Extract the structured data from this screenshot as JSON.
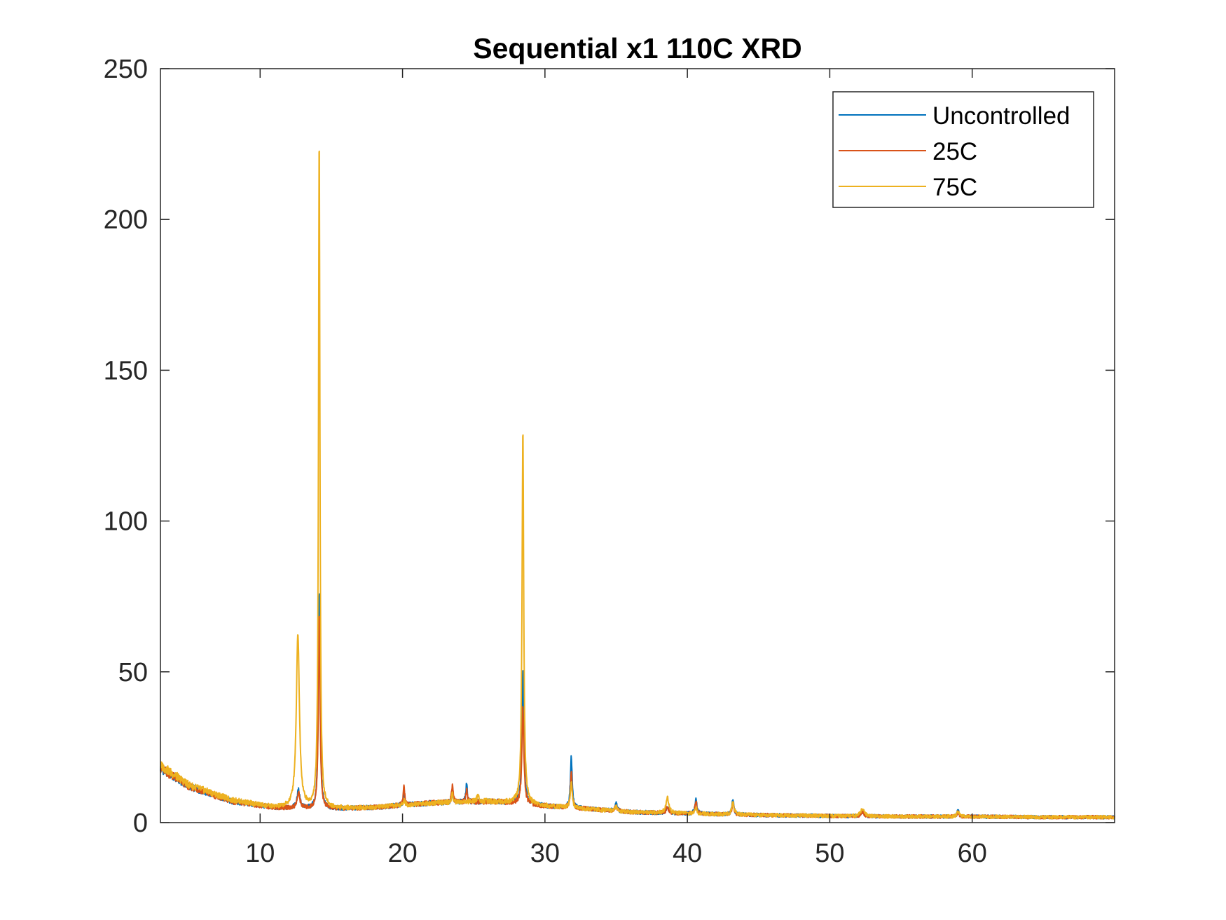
{
  "chart_data": {
    "type": "line",
    "title": "Sequential x1 110C XRD",
    "xlabel": "",
    "ylabel": "",
    "xlim": [
      3,
      70
    ],
    "ylim": [
      0,
      250
    ],
    "x_ticks": [
      10,
      20,
      30,
      40,
      50,
      60
    ],
    "y_ticks": [
      0,
      50,
      100,
      150,
      200,
      250
    ],
    "x_tick_labels": [
      "10",
      "20",
      "30",
      "40",
      "50",
      "60"
    ],
    "y_tick_labels": [
      "0",
      "50",
      "100",
      "150",
      "200",
      "250"
    ],
    "grid": false,
    "legend_position": "top-right",
    "series": [
      {
        "name": "Uncontrolled",
        "color": "#0072BD",
        "baseline": [
          [
            3,
            18
          ],
          [
            5,
            12
          ],
          [
            8,
            7
          ],
          [
            11,
            5
          ],
          [
            14,
            4.5
          ],
          [
            18,
            5
          ],
          [
            22,
            6.5
          ],
          [
            26,
            7
          ],
          [
            28,
            6.5
          ],
          [
            30,
            5.5
          ],
          [
            33,
            4.5
          ],
          [
            36,
            3.5
          ],
          [
            40,
            3
          ],
          [
            45,
            2.5
          ],
          [
            50,
            2.2
          ],
          [
            55,
            2
          ],
          [
            60,
            2
          ],
          [
            65,
            1.8
          ],
          [
            70,
            1.8
          ]
        ],
        "peaks": [
          [
            12.7,
            6,
            0.12
          ],
          [
            14.15,
            72,
            0.07
          ],
          [
            20.1,
            5,
            0.06
          ],
          [
            23.5,
            5,
            0.06
          ],
          [
            24.5,
            6,
            0.06
          ],
          [
            28.45,
            44,
            0.08
          ],
          [
            31.85,
            17,
            0.07
          ],
          [
            35.0,
            2.5,
            0.08
          ],
          [
            38.6,
            2,
            0.1
          ],
          [
            40.6,
            5,
            0.08
          ],
          [
            43.2,
            5,
            0.08
          ],
          [
            52.3,
            1.5,
            0.12
          ],
          [
            59.0,
            2,
            0.08
          ]
        ]
      },
      {
        "name": "25C",
        "color": "#D95319",
        "baseline": [
          [
            3,
            18
          ],
          [
            5,
            12
          ],
          [
            8,
            7
          ],
          [
            11,
            5
          ],
          [
            14,
            4.5
          ],
          [
            18,
            5
          ],
          [
            22,
            6.5
          ],
          [
            26,
            7
          ],
          [
            28,
            6.5
          ],
          [
            30,
            5.5
          ],
          [
            33,
            4.5
          ],
          [
            36,
            3.5
          ],
          [
            40,
            3
          ],
          [
            45,
            2.5
          ],
          [
            50,
            2.2
          ],
          [
            55,
            2
          ],
          [
            60,
            2
          ],
          [
            65,
            1.8
          ],
          [
            70,
            1.8
          ]
        ],
        "peaks": [
          [
            12.7,
            5,
            0.12
          ],
          [
            14.15,
            65,
            0.07
          ],
          [
            20.1,
            6,
            0.06
          ],
          [
            23.5,
            6,
            0.06
          ],
          [
            24.5,
            4,
            0.06
          ],
          [
            28.45,
            32,
            0.08
          ],
          [
            31.85,
            12,
            0.07
          ],
          [
            35.0,
            2,
            0.08
          ],
          [
            38.6,
            2,
            0.1
          ],
          [
            40.6,
            4,
            0.08
          ],
          [
            43.2,
            4,
            0.08
          ],
          [
            52.3,
            1.5,
            0.12
          ],
          [
            59.0,
            1.5,
            0.08
          ]
        ]
      },
      {
        "name": "75C",
        "color": "#EDB120",
        "baseline": [
          [
            3,
            19
          ],
          [
            5,
            12.5
          ],
          [
            8,
            7.5
          ],
          [
            11,
            5
          ],
          [
            14,
            4.5
          ],
          [
            18,
            5
          ],
          [
            22,
            6.5
          ],
          [
            26,
            7
          ],
          [
            28,
            6.5
          ],
          [
            30,
            5.5
          ],
          [
            33,
            4.5
          ],
          [
            36,
            3.5
          ],
          [
            40,
            3
          ],
          [
            45,
            2.5
          ],
          [
            50,
            2.2
          ],
          [
            55,
            2
          ],
          [
            60,
            2
          ],
          [
            65,
            1.8
          ],
          [
            70,
            1.8
          ]
        ],
        "peaks": [
          [
            12.65,
            58,
            0.13
          ],
          [
            14.15,
            224,
            0.06
          ],
          [
            20.1,
            2,
            0.06
          ],
          [
            23.5,
            3,
            0.06
          ],
          [
            25.3,
            2,
            0.1
          ],
          [
            28.45,
            124,
            0.07
          ],
          [
            31.85,
            8,
            0.08
          ],
          [
            35.0,
            1.5,
            0.08
          ],
          [
            38.6,
            5,
            0.12
          ],
          [
            40.6,
            2,
            0.08
          ],
          [
            43.2,
            4,
            0.1
          ],
          [
            52.3,
            2.5,
            0.15
          ],
          [
            59.0,
            2,
            0.08
          ]
        ]
      }
    ]
  }
}
